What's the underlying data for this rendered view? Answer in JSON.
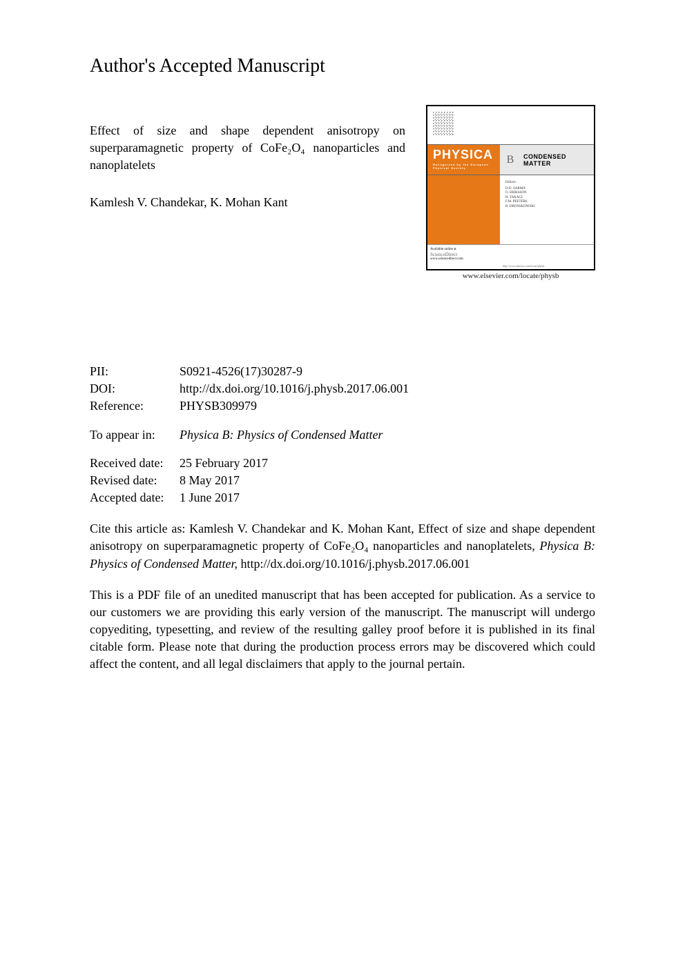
{
  "title": "Author's Accepted Manuscript",
  "article": {
    "full_title": "Effect of size and shape dependent anisotropy on superparamagnetic property of CoFe₂O₄ nanoparticles and nanoplatelets",
    "authors": "Kamlesh V. Chandekar, K. Mohan Kant"
  },
  "journal_cover": {
    "physica_label": "PHYSICA",
    "physica_subtitle": "Recognized by the European Physical Society",
    "b_label": "B",
    "condensed_label": "CONDENSED MATTER",
    "editors_title": "Editors:",
    "editors": "D.D. SARMA\nO. ERIKSSON\nH. TAKAGI\nF.M. PEETERS\nR. DRONSKOWSKI",
    "footer_available": "Available online at",
    "footer_sd": "ScienceDirect",
    "footer_sd_url": "www.sciencedirect.com",
    "footer_right": "http://www.elsevier.com/locate/physb",
    "url": "www.elsevier.com/locate/physb"
  },
  "metadata": {
    "pii_label": "PII:",
    "pii_value": "S0921-4526(17)30287-9",
    "doi_label": "DOI:",
    "doi_value": "http://dx.doi.org/10.1016/j.physb.2017.06.001",
    "ref_label": "Reference:",
    "ref_value": "PHYSB309979"
  },
  "appear": {
    "label": "To appear in:",
    "value": "Physica B: Physics of Condensed Matter"
  },
  "dates": {
    "received_label": "Received date:",
    "received_value": "25 February 2017",
    "revised_label": "Revised date:",
    "revised_value": "8 May 2017",
    "accepted_label": "Accepted date:",
    "accepted_value": "1 June 2017"
  },
  "citation": {
    "prefix": "Cite this article as: Kamlesh V. Chandekar and K. Mohan Kant, Effect of size and shape dependent anisotropy on superparamagnetic property of CoFe₂O₄ nanoparticles and nanoplatelets, ",
    "journal": "Physica B: Physics of Condensed Matter,",
    "doi": " http://dx.doi.org/10.1016/j.physb.2017.06.001"
  },
  "disclaimer": "This is a PDF file of an unedited manuscript that has been accepted for publication. As a service to our customers we are providing this early version of the manuscript. The manuscript will undergo copyediting, typesetting, and review of the resulting galley proof before it is published in its final citable form. Please note that during the production process errors may be discovered which could affect the content, and all legal disclaimers that apply to the journal pertain."
}
